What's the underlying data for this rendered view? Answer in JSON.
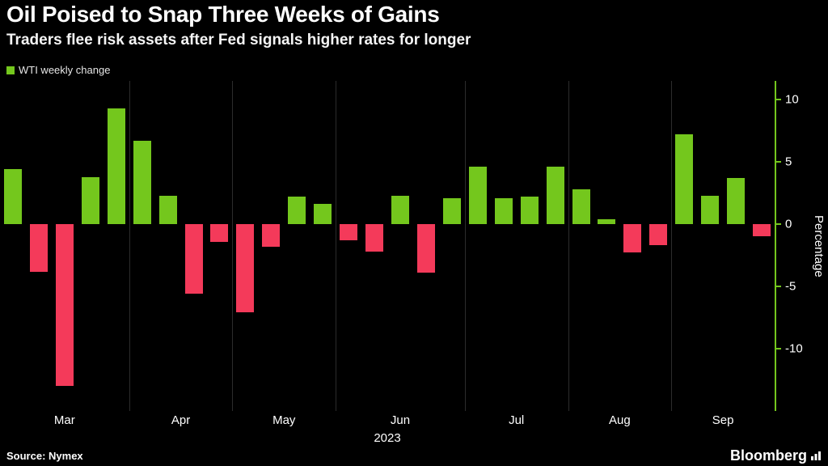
{
  "header": {
    "title": "Oil Poised to Snap Three Weeks of Gains",
    "subtitle": "Traders flee risk assets after Fed signals higher rates for longer"
  },
  "chart_data": {
    "type": "bar",
    "title": "Oil Poised to Snap Three Weeks of Gains",
    "subtitle": "Traders flee risk assets after Fed signals higher rates for longer",
    "legend": "WTI weekly change",
    "ylabel": "Percentage",
    "x_axis_year": "2023",
    "y_ticks": [
      10,
      5,
      0,
      -5,
      -10
    ],
    "ylim": [
      -15,
      11.5
    ],
    "grid": "vertical-month-lines",
    "legend_position": "top-left",
    "months": [
      {
        "label": "Mar",
        "weeks": 5
      },
      {
        "label": "Apr",
        "weeks": 4
      },
      {
        "label": "May",
        "weeks": 4
      },
      {
        "label": "Jun",
        "weeks": 5
      },
      {
        "label": "Jul",
        "weeks": 4
      },
      {
        "label": "Aug",
        "weeks": 4
      },
      {
        "label": "Sep",
        "weeks": 4
      }
    ],
    "values": [
      4.4,
      -3.8,
      -13.0,
      3.8,
      9.3,
      6.7,
      2.3,
      -5.6,
      -1.4,
      -7.1,
      -1.8,
      2.2,
      1.6,
      -1.3,
      -2.2,
      2.3,
      -3.9,
      2.1,
      4.6,
      2.1,
      2.2,
      4.6,
      2.8,
      0.4,
      -2.3,
      -1.7,
      7.2,
      2.3,
      3.7,
      -1.0
    ],
    "positive_color": "#74c71d",
    "negative_color": "#f43a5a",
    "axis_color": "#74c71d",
    "gridline_color": "#2c2c2c",
    "background_color": "#000000"
  },
  "footer": {
    "source": "Source: Nymex",
    "brand": "Bloomberg"
  }
}
